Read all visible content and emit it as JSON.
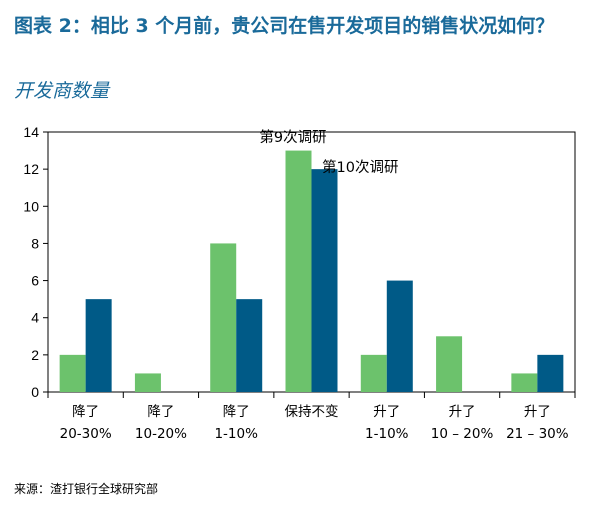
{
  "title": "图表 2：相比 3 个月前，贵公司在售开发项目的销售状况如何？",
  "subtitle": "开发商数量",
  "source": "来源：渣打银行全球研究部",
  "chart_data": {
    "type": "bar",
    "title": "图表 2：相比 3 个月前，贵公司在售开发项目的销售状况如何？",
    "ylabel": "开发商数量",
    "xlabel": "",
    "ylim": [
      0,
      14
    ],
    "yticks": [
      0,
      2,
      4,
      6,
      8,
      10,
      12,
      14
    ],
    "grid": false,
    "legend": "annotations-above-middle-bars",
    "categories": [
      [
        "降了",
        "20-30%"
      ],
      [
        "降了",
        "10-20%"
      ],
      [
        "降了",
        "1-10%"
      ],
      [
        "保持不变",
        ""
      ],
      [
        "升了",
        "1-10%"
      ],
      [
        "升了",
        "10 – 20%"
      ],
      [
        "升了",
        "21 – 30%"
      ]
    ],
    "series": [
      {
        "name": "第9次调研",
        "values": [
          2,
          1,
          8,
          13,
          2,
          3,
          1
        ]
      },
      {
        "name": "第10次调研",
        "values": [
          5,
          0,
          5,
          12,
          6,
          0,
          2
        ]
      }
    ]
  },
  "colors": {
    "series": [
      "#6cc26c",
      "#005a87"
    ],
    "title": "#1a6a9a"
  }
}
